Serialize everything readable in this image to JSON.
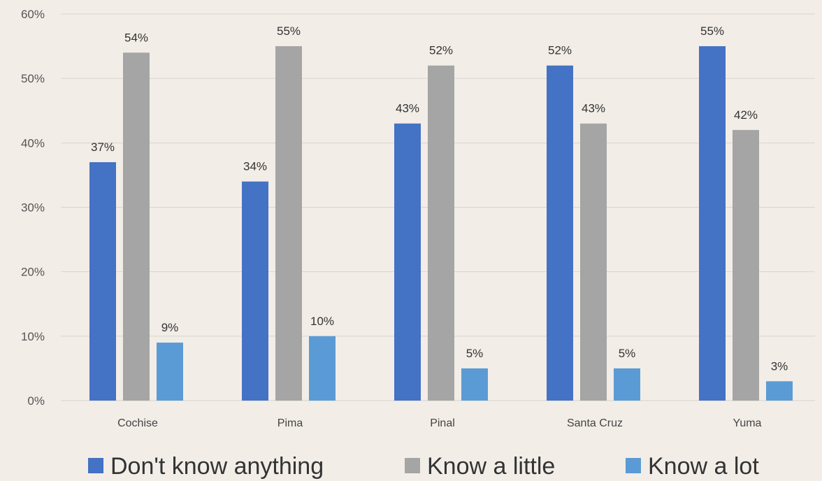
{
  "chart_data": {
    "type": "bar",
    "title": "",
    "xlabel": "",
    "ylabel": "",
    "categories": [
      "Cochise",
      "Pima",
      "Pinal",
      "Santa Cruz",
      "Yuma"
    ],
    "ylim": [
      0,
      60
    ],
    "yticks": [
      "0%",
      "10%",
      "20%",
      "30%",
      "40%",
      "50%",
      "60%"
    ],
    "grid": true,
    "legend_position": "bottom",
    "series": [
      {
        "name": "Don't know anything",
        "color": "#4472c4",
        "values": [
          37,
          34,
          43,
          52,
          55
        ],
        "labels": [
          "37%",
          "34%",
          "43%",
          "52%",
          "55%"
        ]
      },
      {
        "name": "Know a little",
        "color": "#a5a5a5",
        "values": [
          54,
          55,
          52,
          43,
          42
        ],
        "labels": [
          "54%",
          "55%",
          "52%",
          "43%",
          "42%"
        ]
      },
      {
        "name": "Know a lot",
        "color": "#5b9bd5",
        "values": [
          9,
          10,
          5,
          5,
          3
        ],
        "labels": [
          "9%",
          "10%",
          "5%",
          "5%",
          "3%"
        ]
      }
    ]
  }
}
